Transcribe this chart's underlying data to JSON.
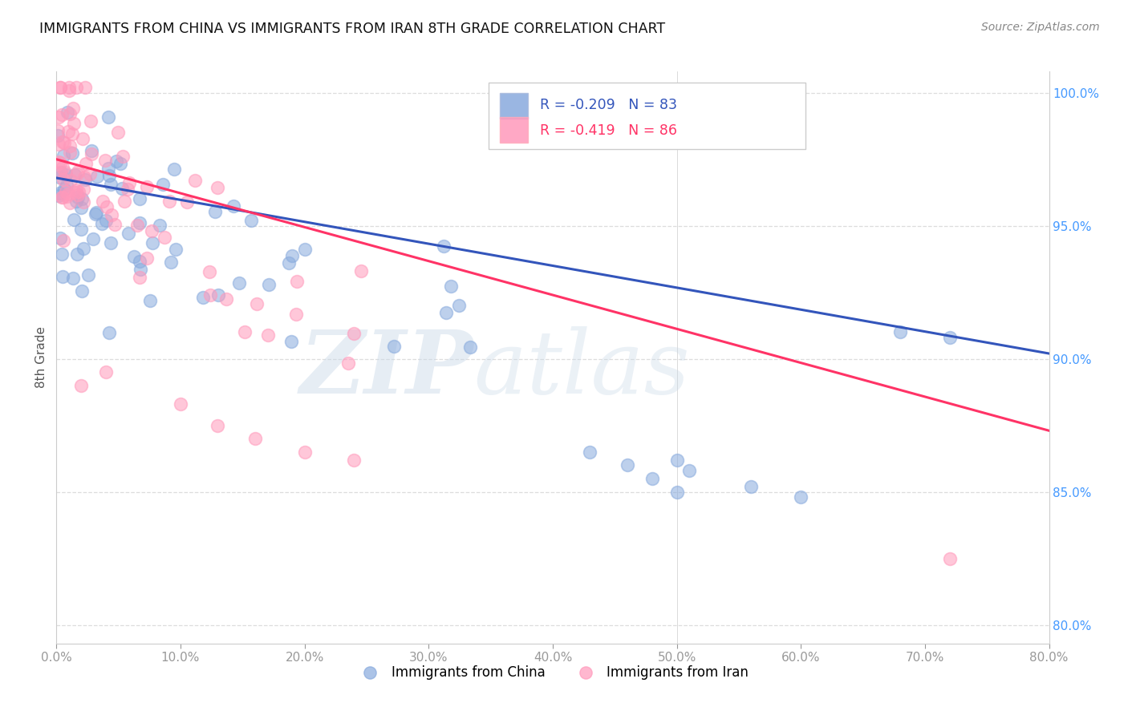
{
  "title": "IMMIGRANTS FROM CHINA VS IMMIGRANTS FROM IRAN 8TH GRADE CORRELATION CHART",
  "source": "Source: ZipAtlas.com",
  "ylabel": "8th Grade",
  "legend_china": "Immigrants from China",
  "legend_iran": "Immigrants from Iran",
  "r_china": -0.209,
  "n_china": 83,
  "r_iran": -0.419,
  "n_iran": 86,
  "color_china": "#88AADD",
  "color_iran": "#FF99BB",
  "line_color_china": "#3355BB",
  "line_color_iran": "#FF3366",
  "xlim": [
    0.0,
    0.8
  ],
  "ylim": [
    0.793,
    1.008
  ],
  "xticks": [
    0.0,
    0.1,
    0.2,
    0.3,
    0.4,
    0.5,
    0.6,
    0.7,
    0.8
  ],
  "yticks": [
    0.8,
    0.85,
    0.9,
    0.95,
    1.0
  ],
  "ytick_labels_right": [
    "80.0%",
    "85.0%",
    "90.0%",
    "95.0%",
    "100.0%"
  ],
  "xtick_labels": [
    "0.0%",
    "10.0%",
    "20.0%",
    "30.0%",
    "40.0%",
    "50.0%",
    "60.0%",
    "70.0%",
    "80.0%"
  ],
  "watermark": "ZIPatlas",
  "china_line_x0": 0.0,
  "china_line_y0": 0.968,
  "china_line_x1": 0.8,
  "china_line_y1": 0.902,
  "iran_line_x0": 0.0,
  "iran_line_y0": 0.975,
  "iran_line_x1": 0.8,
  "iran_line_y1": 0.873
}
